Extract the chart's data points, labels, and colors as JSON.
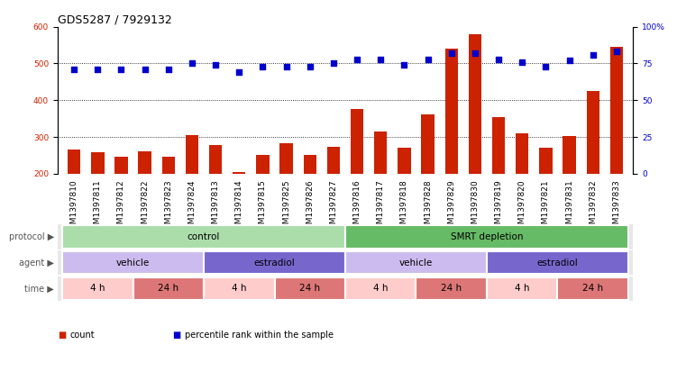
{
  "title": "GDS5287 / 7929132",
  "samples": [
    "GSM1397810",
    "GSM1397811",
    "GSM1397812",
    "GSM1397822",
    "GSM1397823",
    "GSM1397824",
    "GSM1397813",
    "GSM1397814",
    "GSM1397815",
    "GSM1397825",
    "GSM1397826",
    "GSM1397827",
    "GSM1397816",
    "GSM1397817",
    "GSM1397818",
    "GSM1397828",
    "GSM1397829",
    "GSM1397830",
    "GSM1397819",
    "GSM1397820",
    "GSM1397821",
    "GSM1397831",
    "GSM1397832",
    "GSM1397833"
  ],
  "counts": [
    265,
    258,
    247,
    262,
    247,
    305,
    277,
    205,
    252,
    283,
    252,
    272,
    375,
    315,
    270,
    362,
    540,
    580,
    355,
    310,
    270,
    302,
    425,
    545
  ],
  "percentiles": [
    71,
    71,
    71,
    71,
    71,
    75,
    74,
    69,
    73,
    73,
    73,
    75,
    78,
    78,
    74,
    78,
    82,
    82,
    78,
    76,
    73,
    77,
    81,
    83
  ],
  "bar_color": "#cc2200",
  "dot_color": "#0000cc",
  "ylim_left": [
    200,
    600
  ],
  "ylim_right": [
    0,
    100
  ],
  "yticks_left": [
    200,
    300,
    400,
    500,
    600
  ],
  "yticks_right": [
    0,
    25,
    50,
    75,
    100
  ],
  "grid_values": [
    300,
    400,
    500
  ],
  "background_color": "#ffffff",
  "protocol_groups": [
    {
      "label": "control",
      "start": 0,
      "end": 12,
      "color": "#aaddaa"
    },
    {
      "label": "SMRT depletion",
      "start": 12,
      "end": 24,
      "color": "#66bb66"
    }
  ],
  "agent_groups": [
    {
      "label": "vehicle",
      "start": 0,
      "end": 6,
      "color": "#ccbbee"
    },
    {
      "label": "estradiol",
      "start": 6,
      "end": 12,
      "color": "#7766cc"
    },
    {
      "label": "vehicle",
      "start": 12,
      "end": 18,
      "color": "#ccbbee"
    },
    {
      "label": "estradiol",
      "start": 18,
      "end": 24,
      "color": "#7766cc"
    }
  ],
  "time_groups": [
    {
      "label": "4 h",
      "start": 0,
      "end": 3,
      "color": "#ffcccc"
    },
    {
      "label": "24 h",
      "start": 3,
      "end": 6,
      "color": "#dd7777"
    },
    {
      "label": "4 h",
      "start": 6,
      "end": 9,
      "color": "#ffcccc"
    },
    {
      "label": "24 h",
      "start": 9,
      "end": 12,
      "color": "#dd7777"
    },
    {
      "label": "4 h",
      "start": 12,
      "end": 15,
      "color": "#ffcccc"
    },
    {
      "label": "24 h",
      "start": 15,
      "end": 18,
      "color": "#dd7777"
    },
    {
      "label": "4 h",
      "start": 18,
      "end": 21,
      "color": "#ffcccc"
    },
    {
      "label": "24 h",
      "start": 21,
      "end": 24,
      "color": "#dd7777"
    }
  ],
  "row_labels": [
    "protocol",
    "agent",
    "time"
  ],
  "legend_items": [
    {
      "label": "count",
      "color": "#cc2200"
    },
    {
      "label": "percentile rank within the sample",
      "color": "#0000cc"
    }
  ],
  "title_fontsize": 9,
  "tick_fontsize": 6.5,
  "annot_fontsize": 7.5,
  "label_fontsize": 8,
  "bar_width": 0.55
}
